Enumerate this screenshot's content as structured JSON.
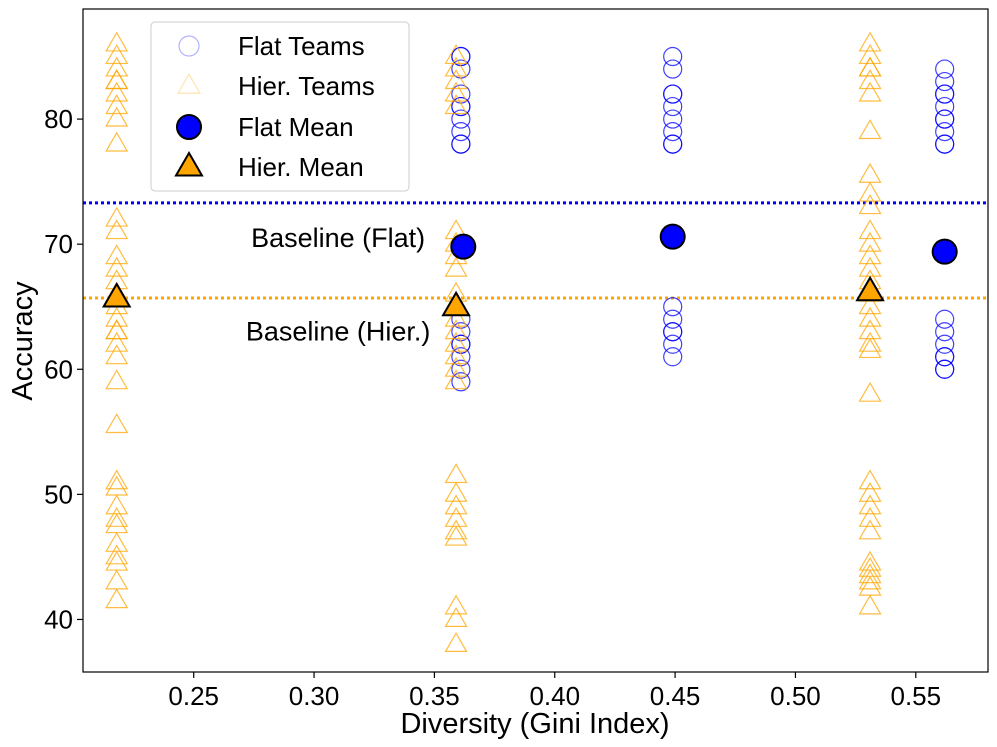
{
  "chart_data": {
    "type": "scatter",
    "xlabel": "Diversity (Gini Index)",
    "ylabel": "Accuracy",
    "xlim": [
      0.204,
      0.58
    ],
    "ylim": [
      35.8,
      88.8
    ],
    "x_ticks": [
      0.25,
      0.3,
      0.35,
      0.4,
      0.45,
      0.5,
      0.55
    ],
    "x_tick_labels": [
      "0.25",
      "0.30",
      "0.35",
      "0.40",
      "0.45",
      "0.50",
      "0.55"
    ],
    "y_ticks": [
      40,
      50,
      60,
      70,
      80
    ],
    "y_tick_labels": [
      "40",
      "50",
      "60",
      "70",
      "80"
    ],
    "grid": false,
    "legend": {
      "position": "top-left",
      "entries": [
        {
          "label": "Flat Teams",
          "marker": "circle-open-faint"
        },
        {
          "label": "Hier. Teams",
          "marker": "triangle-open-faint"
        },
        {
          "label": "Flat Mean",
          "marker": "circle-filled"
        },
        {
          "label": "Hier. Mean",
          "marker": "triangle-filled"
        }
      ]
    },
    "colors": {
      "flat": "#0000ff",
      "hier": "#ffa500",
      "edge": "#000000"
    },
    "baselines": [
      {
        "name": "Baseline (Flat)",
        "y": 73.3,
        "color": "#0000ff",
        "style": "dotted"
      },
      {
        "name": "Baseline (Hier.)",
        "y": 65.7,
        "color": "#ffa500",
        "style": "dotted"
      }
    ],
    "annotations": [
      {
        "text": "Baseline (Flat)",
        "x": 0.31,
        "y": 70.5
      },
      {
        "text": "Baseline (Hier.)",
        "x": 0.31,
        "y": 63.0
      }
    ],
    "series": [
      {
        "name": "Flat Teams",
        "marker": "circle-open",
        "groups": [
          {
            "x": 0.361,
            "y": [
              85,
              85,
              84,
              82,
              81,
              81,
              80,
              79,
              78,
              78,
              64,
              63,
              62,
              62,
              61,
              60,
              59
            ]
          },
          {
            "x": 0.449,
            "y": [
              85,
              84,
              82,
              82,
              81,
              80,
              79,
              78,
              78,
              65,
              64,
              63,
              63,
              62,
              61
            ]
          },
          {
            "x": 0.562,
            "y": [
              84,
              83,
              82,
              82,
              81,
              80,
              80,
              79,
              78,
              78,
              64,
              63,
              62,
              61,
              61,
              60,
              60
            ]
          }
        ]
      },
      {
        "name": "Hier. Teams",
        "marker": "triangle-open",
        "groups": [
          {
            "x": 0.218,
            "y": [
              86,
              85,
              84,
              83,
              83,
              82,
              81,
              80,
              78,
              72,
              71,
              69,
              68,
              67,
              66,
              66,
              65,
              64,
              63,
              63,
              62,
              61,
              59,
              55.5,
              51,
              50.5,
              49,
              48,
              47.5,
              46,
              45,
              44.5,
              43,
              41.5
            ]
          },
          {
            "x": 0.359,
            "y": [
              85,
              84,
              83,
              82,
              81,
              71,
              70,
              69,
              68,
              66,
              65,
              64,
              63,
              62,
              61,
              60,
              59,
              51.5,
              50,
              49,
              48,
              47,
              46.5,
              41,
              40,
              38
            ]
          },
          {
            "x": 0.531,
            "y": [
              86,
              85,
              84,
              84,
              83,
              82,
              79,
              75.5,
              74,
              73,
              71,
              70,
              69,
              68,
              67,
              66,
              65,
              64,
              63,
              62,
              61.5,
              58,
              51,
              50,
              49,
              48,
              47,
              44.5,
              44,
              43.5,
              43,
              42.5,
              41
            ]
          }
        ]
      },
      {
        "name": "Flat Mean",
        "marker": "circle-filled",
        "points": [
          {
            "x": 0.362,
            "y": 69.8
          },
          {
            "x": 0.449,
            "y": 70.6
          },
          {
            "x": 0.562,
            "y": 69.4
          }
        ]
      },
      {
        "name": "Hier. Mean",
        "marker": "triangle-filled",
        "points": [
          {
            "x": 0.218,
            "y": 65.7
          },
          {
            "x": 0.359,
            "y": 65.0
          },
          {
            "x": 0.531,
            "y": 66.2
          }
        ]
      }
    ]
  }
}
